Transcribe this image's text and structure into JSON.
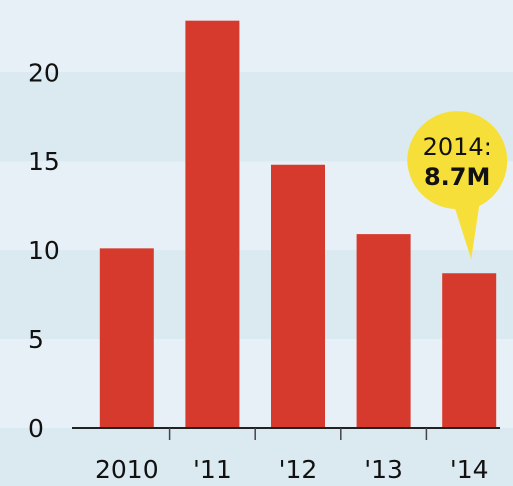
{
  "chart_data": {
    "type": "bar",
    "categories": [
      "2010",
      "'11",
      "'12",
      "'13",
      "'14"
    ],
    "values": [
      10.1,
      22.9,
      14.8,
      10.9,
      8.7
    ],
    "ylim": [
      0,
      23.5
    ],
    "yticks": [
      0,
      5,
      10,
      15,
      20
    ],
    "bar_color": "#d63a2c",
    "band_colors": [
      "#dbe9f1",
      "#e7f0f6"
    ],
    "callout": {
      "category": "'14",
      "line1": "2014:",
      "line2": "8.7M",
      "color": "#f7df3a"
    }
  }
}
